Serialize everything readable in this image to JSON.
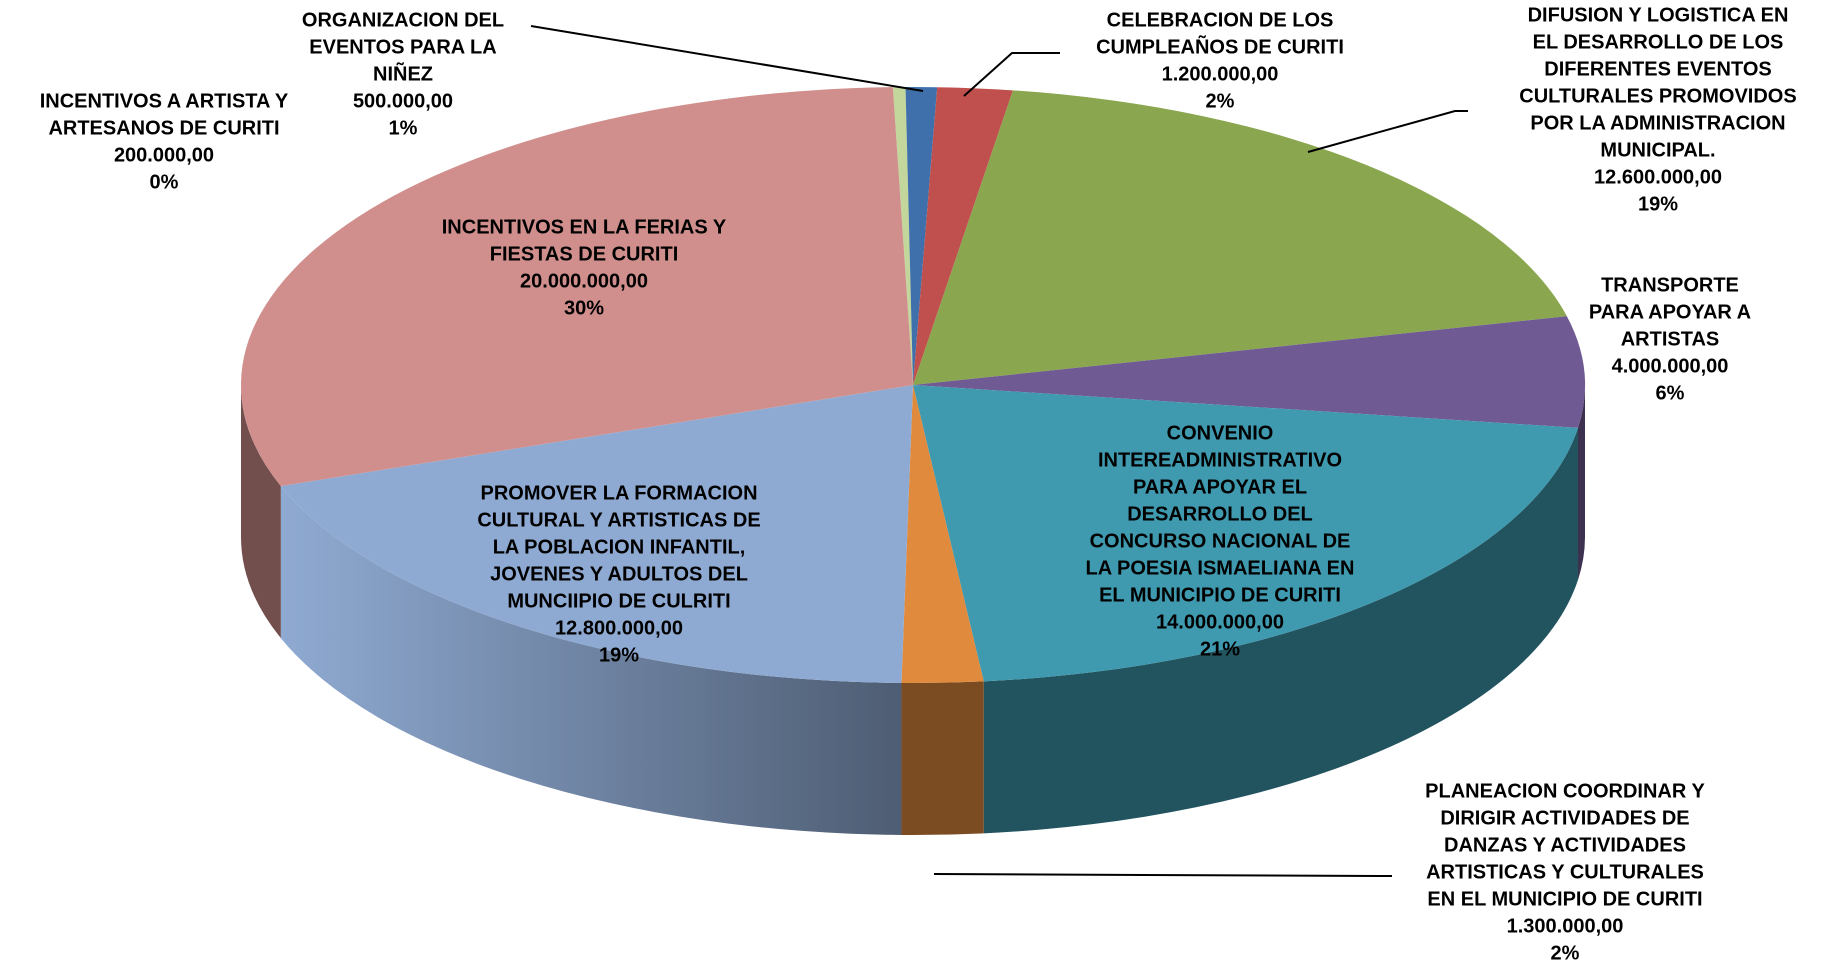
{
  "chart_data": {
    "type": "pie3d",
    "categories": [
      [
        "INCENTIVOS A ARTISTA Y",
        "ARTESANOS DE CURITI"
      ],
      [
        "ORGANIZACION DEL",
        "EVENTOS PARA LA",
        "NIÑEZ"
      ],
      [
        "CELEBRACION DE LOS",
        "CUMPLEAÑOS DE CURITI"
      ],
      [
        "DIFUSION Y LOGISTICA EN",
        "EL DESARROLLO DE LOS",
        "DIFERENTES EVENTOS",
        "CULTURALES PROMOVIDOS",
        "POR LA ADMINISTRACION",
        "MUNICIPAL."
      ],
      [
        "TRANSPORTE",
        "PARA APOYAR A",
        "ARTISTAS"
      ],
      [
        "CONVENIO",
        "INTEREADMINISTRATIVO",
        "PARA APOYAR EL",
        "DESARROLLO DEL",
        "CONCURSO NACIONAL DE",
        "LA POESIA ISMAELIANA EN",
        "EL MUNICIPIO DE CURITI"
      ],
      [
        "PLANEACION COORDINAR Y",
        "DIRIGIR ACTIVIDADES DE",
        "DANZAS Y ACTIVIDADES",
        "ARTISTICAS Y CULTURALES",
        "EN EL MUNICIPIO DE CURITI"
      ],
      [
        "PROMOVER LA FORMACION",
        "CULTURAL Y ARTISTICAS DE",
        "LA POBLACION INFANTIL,",
        "JOVENES Y ADULTOS DEL",
        "MUNCIIPIO DE CULRITI"
      ],
      [
        "INCENTIVOS EN LA FERIAS Y",
        "FIESTAS DE CURITI"
      ]
    ],
    "values": [
      200000,
      500000,
      1200000,
      12600000,
      4000000,
      14000000,
      1300000,
      12800000,
      20000000
    ],
    "value_labels": [
      "200.000,00",
      "500.000,00",
      "1.200.000,00",
      "12.600.000,00",
      "4.000.000,00",
      "14.000.000,00",
      "1.300.000,00",
      "12.800.000,00",
      "20.000.000,00"
    ],
    "percent_labels": [
      "0%",
      "1%",
      "2%",
      "19%",
      "6%",
      "21%",
      "2%",
      "19%",
      "30%"
    ],
    "colors": [
      "#c3d69b",
      "#3f70ab",
      "#c0504d",
      "#8aa64f",
      "#6f5a93",
      "#3f9ab0",
      "#e08a3e",
      "#8faad2",
      "#d08f8d"
    ]
  }
}
